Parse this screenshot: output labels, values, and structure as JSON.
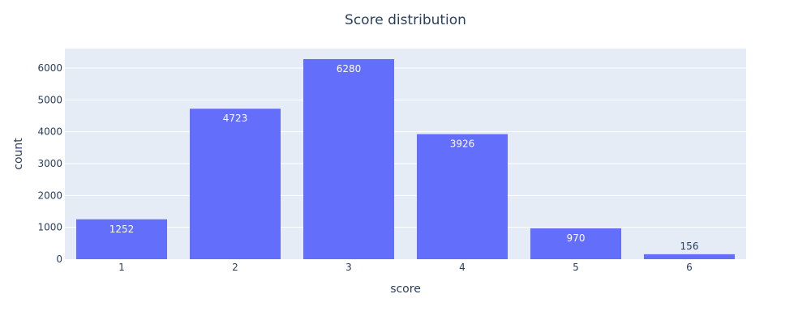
{
  "chart_data": {
    "type": "bar",
    "title": "Score distribution",
    "xlabel": "score",
    "ylabel": "count",
    "categories": [
      "1",
      "2",
      "3",
      "4",
      "5",
      "6"
    ],
    "values": [
      1252,
      4723,
      6280,
      3926,
      970,
      156
    ],
    "ylim": [
      0,
      6610
    ],
    "yticks": [
      0,
      1000,
      2000,
      3000,
      4000,
      5000,
      6000
    ],
    "grid": true,
    "legend": "none",
    "colors": {
      "bar": "#636efa",
      "plot_background": "#e5ecf6",
      "grid": "#ffffff",
      "text": "#2a3f5f",
      "label_inside": "#ffffff",
      "label_outside": "#2a3f5f"
    }
  }
}
